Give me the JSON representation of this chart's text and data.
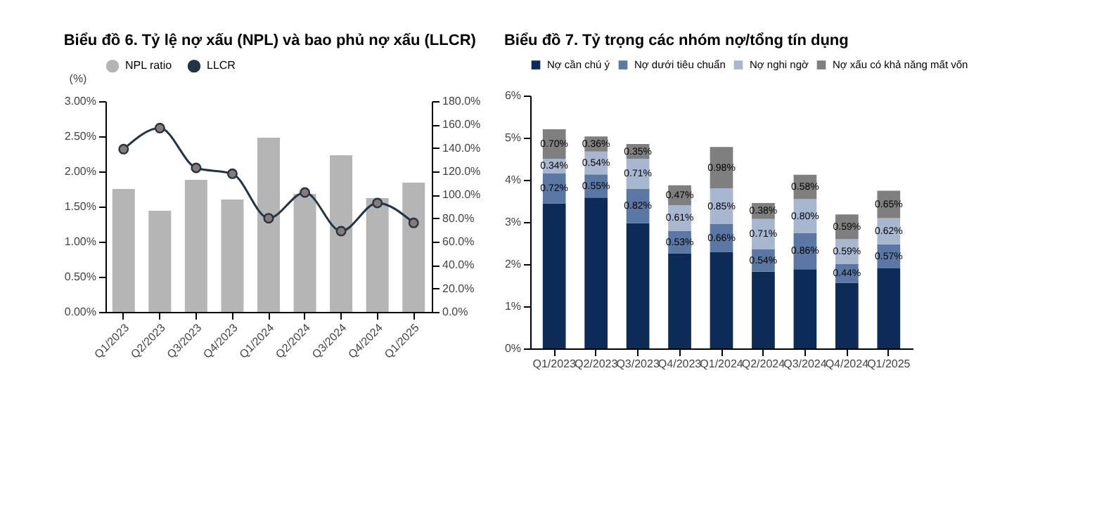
{
  "chart_data": [
    {
      "type": "bar",
      "title": "Biểu đồ 6. Tỷ lệ nợ xấu (NPL) và bao phủ nợ xấu (LLCR)",
      "ylabel": "(%)",
      "categories": [
        "Q1/2023",
        "Q2/2023",
        "Q3/2023",
        "Q4/2023",
        "Q1/2024",
        "Q2/2024",
        "Q3/2024",
        "Q4/2024",
        "Q1/2025"
      ],
      "series": [
        {
          "name": "NPL ratio",
          "type": "bar",
          "color": "#b5b5b5",
          "values": [
            1.75,
            1.44,
            1.88,
            1.6,
            2.48,
            1.68,
            2.23,
            1.62,
            1.84
          ]
        },
        {
          "name": "LLCR",
          "type": "line",
          "axis": "y2",
          "color": "#233544",
          "values": [
            139,
            157,
            123,
            118,
            80,
            102,
            69,
            93,
            76
          ]
        }
      ],
      "ylim": [
        0,
        3
      ],
      "yticks": [
        {
          "value": 0,
          "label": "0.00%"
        },
        {
          "value": 0.5,
          "label": "0.50%"
        },
        {
          "value": 1,
          "label": "1.00%"
        },
        {
          "value": 1.5,
          "label": "1.50%"
        },
        {
          "value": 2,
          "label": "2.00%"
        },
        {
          "value": 2.5,
          "label": "2.50%"
        },
        {
          "value": 3,
          "label": "3.00%"
        }
      ],
      "y2lim": [
        0,
        180
      ],
      "y2ticks": [
        {
          "value": 0,
          "label": "0.0%"
        },
        {
          "value": 20,
          "label": "20.0%"
        },
        {
          "value": 40,
          "label": "40.0%"
        },
        {
          "value": 60,
          "label": "60.0%"
        },
        {
          "value": 80,
          "label": "80.0%"
        },
        {
          "value": 100,
          "label": "100.0%"
        },
        {
          "value": 120,
          "label": "120.0%"
        },
        {
          "value": 140,
          "label": "140.0%"
        },
        {
          "value": 160,
          "label": "160.0%"
        },
        {
          "value": 180,
          "label": "180.0%"
        }
      ],
      "marker": "circle",
      "legend": "top",
      "grid": false
    },
    {
      "type": "bar",
      "stacked": true,
      "title": "Biểu đồ 7. Tỷ trọng các nhóm nợ/tổng tín dụng",
      "categories": [
        "Q1/2023",
        "Q2/2023",
        "Q3/2023",
        "Q4/2023",
        "Q1/2024",
        "Q2/2024",
        "Q3/2024",
        "Q4/2024",
        "Q1/2025"
      ],
      "series": [
        {
          "name": "Nợ cần chú ý",
          "color": "#0c2b57",
          "values": [
            3.44,
            3.58,
            2.97,
            2.26,
            2.29,
            1.82,
            1.88,
            1.56,
            1.9
          ],
          "value_labels": [
            null,
            null,
            null,
            null,
            null,
            null,
            null,
            null,
            null
          ]
        },
        {
          "name": "Nợ dưới tiêu chuẩn",
          "color": "#5a78a3",
          "values": [
            0.72,
            0.55,
            0.82,
            0.53,
            0.66,
            0.54,
            0.86,
            0.44,
            0.57
          ],
          "value_labels": [
            "0.72%",
            "0.55%",
            "0.82%",
            "0.53%",
            "0.66%",
            "0.54%",
            "0.86%",
            "0.44%",
            "0.57%"
          ]
        },
        {
          "name": "Nợ nghi ngờ",
          "color": "#a8b7d0",
          "values": [
            0.34,
            0.54,
            0.71,
            0.61,
            0.85,
            0.71,
            0.8,
            0.59,
            0.62
          ],
          "value_labels": [
            "0.34%",
            "0.54%",
            "0.71%",
            "0.61%",
            "0.85%",
            "0.71%",
            "0.80%",
            "0.59%",
            "0.62%"
          ]
        },
        {
          "name": "Nợ xấu có khả năng mất vốn",
          "color": "#7f7f7f",
          "values": [
            0.7,
            0.36,
            0.35,
            0.47,
            0.98,
            0.38,
            0.58,
            0.59,
            0.65
          ],
          "value_labels": [
            "0.70%",
            "0.36%",
            "0.35%",
            "0.47%",
            "0.98%",
            "0.38%",
            "0.58%",
            "0.59%",
            "0.65%"
          ]
        }
      ],
      "ylim": [
        0,
        6
      ],
      "yticks": [
        {
          "value": 0,
          "label": "0%"
        },
        {
          "value": 1,
          "label": "1%"
        },
        {
          "value": 2,
          "label": "2%"
        },
        {
          "value": 3,
          "label": "3%"
        },
        {
          "value": 4,
          "label": "4%"
        },
        {
          "value": 5,
          "label": "5%"
        },
        {
          "value": 6,
          "label": "6%"
        }
      ],
      "legend": "top",
      "grid": false
    }
  ]
}
